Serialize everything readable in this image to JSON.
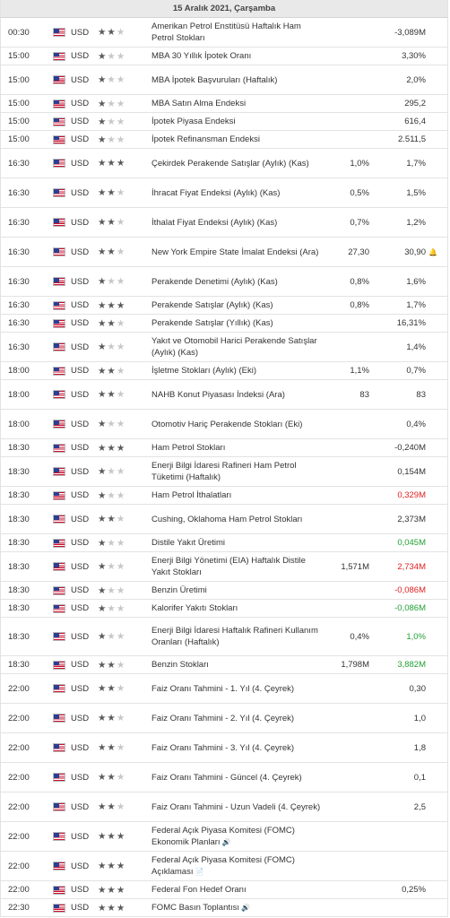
{
  "date_header": "15 Aralık 2021, Çarşamba",
  "rows": [
    {
      "time": "00:30",
      "currency": "USD",
      "importance": 2,
      "event": "Amerikan Petrol Enstitüsü Haftalık Ham Petrol Stokları",
      "actual": "",
      "forecast": "-3,089M",
      "color": "",
      "h": "h2"
    },
    {
      "time": "15:00",
      "currency": "USD",
      "importance": 1,
      "event": "MBA 30 Yıllık İpotek Oranı",
      "actual": "",
      "forecast": "3,30%",
      "color": "",
      "h": "h1"
    },
    {
      "time": "15:00",
      "currency": "USD",
      "importance": 1,
      "event": "MBA İpotek Başvuruları (Haftalık)",
      "actual": "",
      "forecast": "2,0%",
      "color": "",
      "h": "h2"
    },
    {
      "time": "15:00",
      "currency": "USD",
      "importance": 1,
      "event": "MBA Satın Alma Endeksi",
      "actual": "",
      "forecast": "295,2",
      "color": "",
      "h": "h1"
    },
    {
      "time": "15:00",
      "currency": "USD",
      "importance": 1,
      "event": "İpotek Piyasa Endeksi",
      "actual": "",
      "forecast": "616,4",
      "color": "",
      "h": "h1"
    },
    {
      "time": "15:00",
      "currency": "USD",
      "importance": 1,
      "event": "İpotek Refinansman Endeksi",
      "actual": "",
      "forecast": "2.511,5",
      "color": "",
      "h": "h1"
    },
    {
      "time": "16:30",
      "currency": "USD",
      "importance": 3,
      "event": "Çekirdek Perakende Satışlar (Aylık) (Kas)",
      "actual": "1,0%",
      "forecast": "1,7%",
      "color": "",
      "h": "h2"
    },
    {
      "time": "16:30",
      "currency": "USD",
      "importance": 2,
      "event": "İhracat Fiyat Endeksi (Aylık) (Kas)",
      "actual": "0,5%",
      "forecast": "1,5%",
      "color": "",
      "h": "h2"
    },
    {
      "time": "16:30",
      "currency": "USD",
      "importance": 2,
      "event": "İthalat Fiyat Endeksi (Aylık) (Kas)",
      "actual": "0,7%",
      "forecast": "1,2%",
      "color": "",
      "h": "h2"
    },
    {
      "time": "16:30",
      "currency": "USD",
      "importance": 2,
      "event": "New York Empire State İmalat Endeksi (Ara)",
      "actual": "27,30",
      "forecast": "30,90",
      "color": "",
      "h": "h2",
      "bell": "🔔"
    },
    {
      "time": "16:30",
      "currency": "USD",
      "importance": 1,
      "event": "Perakende Denetimi (Aylık) (Kas)",
      "actual": "0,8%",
      "forecast": "1,6%",
      "color": "",
      "h": "h2"
    },
    {
      "time": "16:30",
      "currency": "USD",
      "importance": 3,
      "event": "Perakende Satışlar (Aylık) (Kas)",
      "actual": "0,8%",
      "forecast": "1,7%",
      "color": "",
      "h": "h1"
    },
    {
      "time": "16:30",
      "currency": "USD",
      "importance": 2,
      "event": "Perakende Satışlar (Yıllık) (Kas)",
      "actual": "",
      "forecast": "16,31%",
      "color": "",
      "h": "h1"
    },
    {
      "time": "16:30",
      "currency": "USD",
      "importance": 1,
      "event": "Yakıt ve Otomobil Harici Perakende Satışlar (Aylık) (Kas)",
      "actual": "",
      "forecast": "1,4%",
      "color": "",
      "h": "h2"
    },
    {
      "time": "18:00",
      "currency": "USD",
      "importance": 2,
      "event": "İşletme Stokları (Aylık) (Eki)",
      "actual": "1,1%",
      "forecast": "0,7%",
      "color": "",
      "h": "h1"
    },
    {
      "time": "18:00",
      "currency": "USD",
      "importance": 2,
      "event": "NAHB Konut Piyasası İndeksi (Ara)",
      "actual": "83",
      "forecast": "83",
      "color": "",
      "h": "h2"
    },
    {
      "time": "18:00",
      "currency": "USD",
      "importance": 1,
      "event": "Otomotiv Hariç Perakende Stokları (Eki)",
      "actual": "",
      "forecast": "0,4%",
      "color": "",
      "h": "h2"
    },
    {
      "time": "18:30",
      "currency": "USD",
      "importance": 3,
      "event": "Ham Petrol Stokları",
      "actual": "",
      "forecast": "-0,240M",
      "color": "",
      "h": "h1"
    },
    {
      "time": "18:30",
      "currency": "USD",
      "importance": 1,
      "event": "Enerji Bilgi İdaresi Rafineri Ham Petrol Tüketimi (Haftalık)",
      "actual": "",
      "forecast": "0,154M",
      "color": "",
      "h": "h2"
    },
    {
      "time": "18:30",
      "currency": "USD",
      "importance": 1,
      "event": "Ham Petrol İthalatları",
      "actual": "",
      "forecast": "0,329M",
      "color": "neg",
      "h": "h1"
    },
    {
      "time": "18:30",
      "currency": "USD",
      "importance": 2,
      "event": "Cushing, Oklahoma Ham Petrol Stokları",
      "actual": "",
      "forecast": "2,373M",
      "color": "",
      "h": "h2"
    },
    {
      "time": "18:30",
      "currency": "USD",
      "importance": 1,
      "event": "Distile Yakıt Üretimi",
      "actual": "",
      "forecast": "0,045M",
      "color": "pos",
      "h": "h1"
    },
    {
      "time": "18:30",
      "currency": "USD",
      "importance": 1,
      "event": "Enerji Bilgi Yönetimi (EIA) Haftalık Distile Yakıt Stokları",
      "actual": "1,571M",
      "forecast": "2,734M",
      "color": "neg",
      "h": "h2"
    },
    {
      "time": "18:30",
      "currency": "USD",
      "importance": 1,
      "event": "Benzin Üretimi",
      "actual": "",
      "forecast": "-0,086M",
      "color": "neg",
      "h": "h1"
    },
    {
      "time": "18:30",
      "currency": "USD",
      "importance": 1,
      "event": "Kalorifer Yakıtı Stokları",
      "actual": "",
      "forecast": "-0,086M",
      "color": "pos",
      "h": "h1"
    },
    {
      "time": "18:30",
      "currency": "USD",
      "importance": 1,
      "event": "Enerji Bilgi İdaresi Haftalık Rafineri Kullanım Oranları (Haftalık)",
      "actual": "0,4%",
      "forecast": "1,0%",
      "color": "pos",
      "h": "h3"
    },
    {
      "time": "18:30",
      "currency": "USD",
      "importance": 2,
      "event": "Benzin Stokları",
      "actual": "1,798M",
      "forecast": "3,882M",
      "color": "pos",
      "h": "h1"
    },
    {
      "time": "22:00",
      "currency": "USD",
      "importance": 2,
      "event": "Faiz Oranı Tahmini - 1. Yıl (4. Çeyrek)",
      "actual": "",
      "forecast": "0,30",
      "color": "",
      "h": "h2"
    },
    {
      "time": "22:00",
      "currency": "USD",
      "importance": 2,
      "event": "Faiz Oranı Tahmini - 2. Yıl (4. Çeyrek)",
      "actual": "",
      "forecast": "1,0",
      "color": "",
      "h": "h2"
    },
    {
      "time": "22:00",
      "currency": "USD",
      "importance": 2,
      "event": "Faiz Oranı Tahmini - 3. Yıl (4. Çeyrek)",
      "actual": "",
      "forecast": "1,8",
      "color": "",
      "h": "h2"
    },
    {
      "time": "22:00",
      "currency": "USD",
      "importance": 2,
      "event": "Faiz Oranı Tahmini - Güncel (4. Çeyrek)",
      "actual": "",
      "forecast": "0,1",
      "color": "",
      "h": "h2"
    },
    {
      "time": "22:00",
      "currency": "USD",
      "importance": 2,
      "event": "Faiz Oranı Tahmini - Uzun Vadeli (4. Çeyrek)",
      "actual": "",
      "forecast": "2,5",
      "color": "",
      "h": "h2"
    },
    {
      "time": "22:00",
      "currency": "USD",
      "importance": 3,
      "event": "Federal Açık Piyasa Komitesi (FOMC) Ekonomik Planları",
      "actual": "",
      "forecast": "",
      "color": "",
      "h": "h2",
      "suffix": "🔊"
    },
    {
      "time": "22:00",
      "currency": "USD",
      "importance": 3,
      "event": "Federal Açık Piyasa Komitesi (FOMC) Açıklaması",
      "actual": "",
      "forecast": "",
      "color": "",
      "h": "h2",
      "suffix": "📄"
    },
    {
      "time": "22:00",
      "currency": "USD",
      "importance": 3,
      "event": "Federal Fon Hedef Oranı",
      "actual": "",
      "forecast": "0,25%",
      "color": "",
      "h": "h1"
    },
    {
      "time": "22:30",
      "currency": "USD",
      "importance": 3,
      "event": "FOMC Basın Toplantısı",
      "actual": "",
      "forecast": "",
      "color": "",
      "h": "h1",
      "suffix": "🔊"
    }
  ]
}
